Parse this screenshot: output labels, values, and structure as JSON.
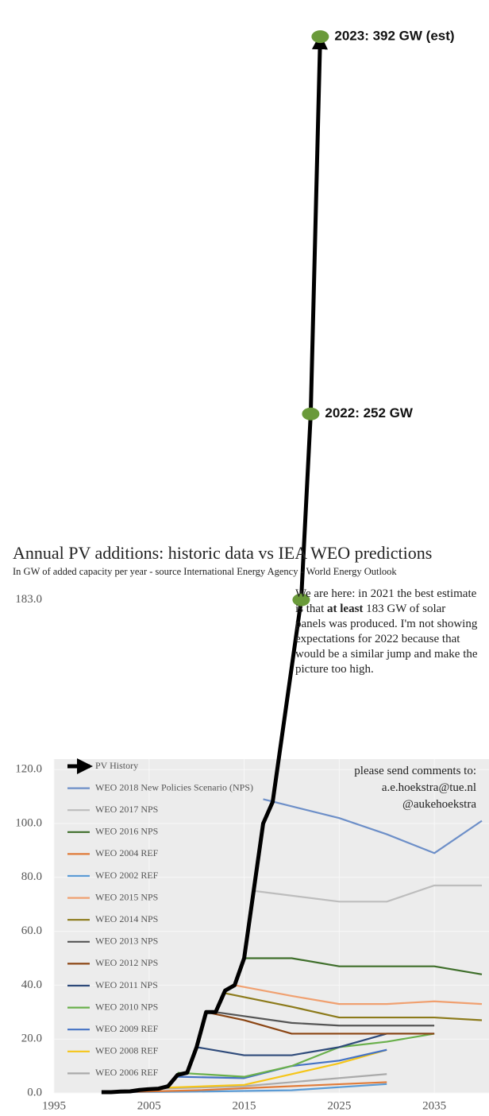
{
  "chart_data": {
    "type": "line",
    "title": "Annual PV additions: historic data vs IEA WEO predictions",
    "subtitle": "In GW of added capacity per year - source International Energy Agency - World Energy Outlook",
    "contact": [
      "please send comments to:",
      "a.e.hoekstra@tue.nl",
      "@aukehoekstra"
    ],
    "annotation": {
      "before": "We are here: in 2021 the best estimate is that ",
      "bold": "at least",
      "after": " 183 GW of solar panels was produced. I'm not showing expectations for 2022 because that would be a similar jump and make the picture too high."
    },
    "point_labels": [
      "2022: 252 GW",
      "2023: 392 GW (est)"
    ],
    "xlim": [
      1995,
      2040
    ],
    "xticks": [
      1995,
      2005,
      2015,
      2025,
      2035
    ],
    "ylim": [
      0,
      405.6
    ],
    "yticks": [
      {
        "value": 0,
        "label": "0.0"
      },
      {
        "value": 20,
        "label": "20.0"
      },
      {
        "value": 40,
        "label": "40.0"
      },
      {
        "value": 60,
        "label": "60.0"
      },
      {
        "value": 80,
        "label": "80.0"
      },
      {
        "value": 100,
        "label": "100.0"
      },
      {
        "value": 120,
        "label": "120.0"
      },
      {
        "value": 183,
        "label": "183.0"
      }
    ],
    "grid": true,
    "series": [
      {
        "name": "PV History",
        "color": "#000000",
        "x": [
          2000,
          2001,
          2002,
          2003,
          2004,
          2005,
          2006,
          2007,
          2008,
          2009,
          2010,
          2011,
          2012,
          2013,
          2014,
          2015,
          2016,
          2017,
          2018,
          2021,
          2022,
          2023
        ],
        "values": [
          0.3,
          0.3,
          0.5,
          0.6,
          1.1,
          1.4,
          1.6,
          2.5,
          6.7,
          7.5,
          17,
          30,
          30,
          38,
          40,
          50,
          75,
          100,
          108,
          183,
          252,
          392
        ]
      },
      {
        "name": "WEO 2018 New Policies Scenario (NPS)",
        "color": "#6d8fc8",
        "x": [
          2017,
          2025,
          2030,
          2035,
          2040
        ],
        "values": [
          109,
          102,
          96,
          89,
          101
        ]
      },
      {
        "name": "WEO 2017 NPS",
        "color": "#bdbdbd",
        "x": [
          2016,
          2025,
          2030,
          2035,
          2040
        ],
        "values": [
          75,
          71,
          71,
          77,
          77
        ]
      },
      {
        "name": "WEO 2016 NPS",
        "color": "#3e6e2a",
        "x": [
          2015,
          2020,
          2025,
          2030,
          2035,
          2040
        ],
        "values": [
          50,
          50,
          47,
          47,
          47,
          44
        ]
      },
      {
        "name": "WEO 2004 REF",
        "color": "#e07b39",
        "x": [
          2002,
          2010,
          2020,
          2030
        ],
        "values": [
          0.3,
          1,
          2.5,
          4
        ]
      },
      {
        "name": "WEO 2002 REF",
        "color": "#5b9bd5",
        "x": [
          2000,
          2010,
          2020,
          2030
        ],
        "values": [
          0.2,
          0.5,
          1,
          3.3
        ]
      },
      {
        "name": "WEO 2015 NPS",
        "color": "#f0a070",
        "x": [
          2014,
          2020,
          2025,
          2030,
          2035,
          2040
        ],
        "values": [
          40,
          36,
          33,
          33,
          34,
          33
        ]
      },
      {
        "name": "WEO 2014 NPS",
        "color": "#8c7a1a",
        "x": [
          2013,
          2020,
          2025,
          2030,
          2035,
          2040
        ],
        "values": [
          37,
          32,
          28,
          28,
          28,
          27
        ]
      },
      {
        "name": "WEO 2013 NPS",
        "color": "#555555",
        "x": [
          2012,
          2020,
          2025,
          2030,
          2035
        ],
        "values": [
          30,
          26,
          25,
          25,
          25
        ]
      },
      {
        "name": "WEO 2012 NPS",
        "color": "#8b4513",
        "x": [
          2011,
          2015,
          2020,
          2025,
          2030,
          2035
        ],
        "values": [
          30,
          27,
          22,
          22,
          22,
          22
        ]
      },
      {
        "name": "WEO 2011 NPS",
        "color": "#2e4a7a",
        "x": [
          2010,
          2015,
          2020,
          2025,
          2030,
          2035
        ],
        "values": [
          17,
          14,
          14,
          17,
          22,
          22
        ]
      },
      {
        "name": "WEO 2010 NPS",
        "color": "#6ab04c",
        "x": [
          2008,
          2015,
          2020,
          2025,
          2030,
          2035
        ],
        "values": [
          7.5,
          6,
          10,
          17,
          19,
          22
        ]
      },
      {
        "name": "WEO 2009 REF",
        "color": "#4472c4",
        "x": [
          2008,
          2015,
          2020,
          2025,
          2030
        ],
        "values": [
          6,
          5.5,
          10,
          12,
          16
        ]
      },
      {
        "name": "WEO 2008 REF",
        "color": "#f5c518",
        "x": [
          2007,
          2015,
          2020,
          2025,
          2030
        ],
        "values": [
          2,
          3,
          7,
          11,
          16
        ]
      },
      {
        "name": "WEO 2006 REF",
        "color": "#aaaaaa",
        "x": [
          2005,
          2015,
          2020,
          2030
        ],
        "values": [
          1.5,
          2.5,
          4,
          7
        ]
      }
    ]
  }
}
